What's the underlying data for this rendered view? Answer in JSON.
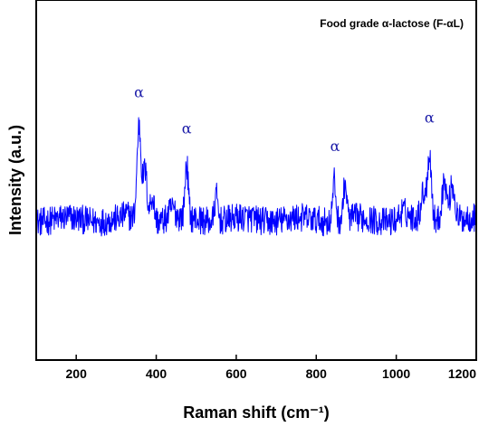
{
  "chart_data": {
    "type": "line",
    "title": "Food grade α-lactose (F-αL)",
    "xlabel": "Raman shift (cm⁻¹)",
    "ylabel": "Intensity (a.u.)",
    "xlim": [
      100,
      1200
    ],
    "ylim": [
      0,
      100
    ],
    "x_ticks": [
      200,
      400,
      600,
      800,
      1000,
      1200
    ],
    "x_tick_labels": [
      "200",
      "400",
      "600",
      "800",
      "1000",
      "1200"
    ],
    "y_ticks_visible": false,
    "grid": false,
    "legend": "top-right",
    "series": [
      {
        "name": "Food grade α-lactose (F-αL)",
        "color": "#0000ff",
        "baseline": 39,
        "noise_amplitude": 4,
        "peaks": [
          {
            "x": 325,
            "height": 1,
            "width": 6
          },
          {
            "x": 357,
            "height": 26,
            "width": 5
          },
          {
            "x": 372,
            "height": 14,
            "width": 5
          },
          {
            "x": 390,
            "height": 7,
            "width": 5
          },
          {
            "x": 440,
            "height": 3,
            "width": 8
          },
          {
            "x": 476,
            "height": 15,
            "width": 4
          },
          {
            "x": 550,
            "height": 7,
            "width": 4
          },
          {
            "x": 845,
            "height": 11,
            "width": 4
          },
          {
            "x": 872,
            "height": 10,
            "width": 4
          },
          {
            "x": 1017,
            "height": 2,
            "width": 10
          },
          {
            "x": 1068,
            "height": 7,
            "width": 6
          },
          {
            "x": 1083,
            "height": 18,
            "width": 5
          },
          {
            "x": 1120,
            "height": 11,
            "width": 6
          },
          {
            "x": 1140,
            "height": 10,
            "width": 6
          }
        ]
      }
    ],
    "annotations": [
      {
        "text": "α",
        "x": 357,
        "y": 73
      },
      {
        "text": "α",
        "x": 476,
        "y": 63
      },
      {
        "text": "α",
        "x": 847,
        "y": 58
      },
      {
        "text": "α",
        "x": 1083,
        "y": 66
      }
    ]
  }
}
